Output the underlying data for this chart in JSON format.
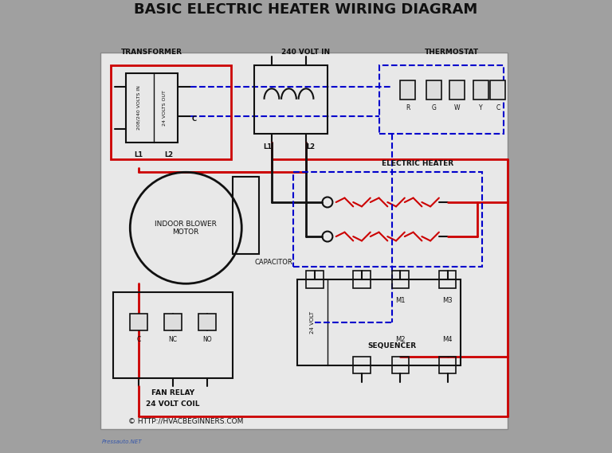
{
  "title": "BASIC ELECTRIC HEATER WIRING DIAGRAM",
  "bg_color": "#a0a0a0",
  "diagram_bg": "#e8e8e8",
  "title_color": "#111111",
  "red": "#cc0000",
  "blue": "#0000cc",
  "black": "#111111",
  "copyright": "© HTTP://HVACBEGINNERS.COM",
  "watermark": "Pressauto.NET"
}
